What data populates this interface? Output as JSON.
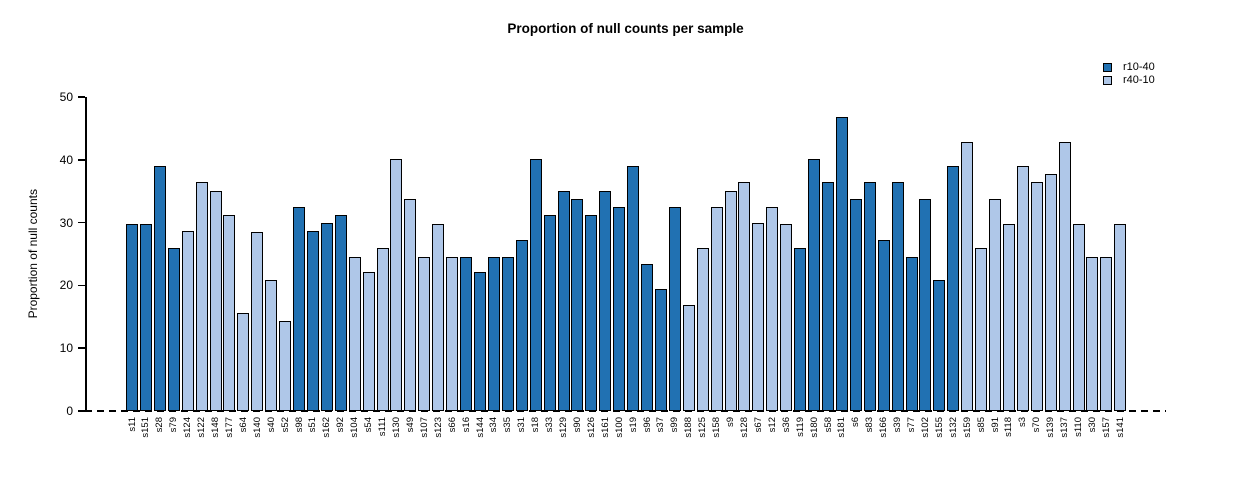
{
  "chart_data": {
    "type": "bar",
    "title": "Proportion of null counts per sample",
    "ylabel": "Proportion of null counts",
    "xlabel": "",
    "ylim": [
      0,
      50
    ],
    "yticks": [
      0,
      10,
      20,
      30,
      40,
      50
    ],
    "grid": false,
    "zero_line_style": "dashed",
    "legend": {
      "position": "top-right",
      "entries": [
        {
          "label": "r10-40",
          "color": "#2171B2"
        },
        {
          "label": "r40-10",
          "color": "#AFC7E8"
        }
      ]
    },
    "bar_border_color": "#000000",
    "categories": [
      "s11",
      "s151",
      "s28",
      "s79",
      "s124",
      "s122",
      "s148",
      "s177",
      "s64",
      "s140",
      "s40",
      "s52",
      "s98",
      "s51",
      "s162",
      "s92",
      "s104",
      "s54",
      "s111",
      "s130",
      "s49",
      "s107",
      "s123",
      "s66",
      "s16",
      "s144",
      "s34",
      "s35",
      "s31",
      "s18",
      "s33",
      "s129",
      "s90",
      "s126",
      "s161",
      "s100",
      "s19",
      "s96",
      "s37",
      "s99",
      "s188",
      "s125",
      "s158",
      "s9",
      "s128",
      "s67",
      "s12",
      "s36",
      "s119",
      "s180",
      "s58",
      "s181",
      "s6",
      "s83",
      "s166",
      "s39",
      "s77",
      "s102",
      "s155",
      "s132",
      "s159",
      "s85",
      "s91",
      "s118",
      "s3",
      "s70",
      "s139",
      "s137",
      "s110",
      "s30",
      "s157",
      "s141"
    ],
    "values": [
      29.8,
      29.8,
      39.0,
      26.0,
      28.6,
      36.4,
      35.0,
      31.2,
      15.6,
      28.5,
      20.8,
      14.3,
      32.5,
      28.6,
      29.9,
      31.2,
      24.5,
      22.1,
      26.0,
      40.2,
      33.8,
      24.5,
      29.8,
      24.5,
      24.5,
      22.1,
      24.5,
      24.5,
      27.3,
      40.2,
      31.2,
      35.0,
      33.7,
      31.2,
      35.0,
      32.5,
      39.0,
      23.4,
      19.5,
      32.5,
      16.9,
      26.0,
      32.5,
      35.0,
      36.4,
      29.9,
      32.5,
      29.8,
      26.0,
      40.2,
      36.4,
      46.8,
      33.7,
      36.4,
      27.3,
      36.4,
      24.6,
      33.7,
      20.8,
      39.0,
      42.8,
      26.0,
      33.7,
      29.8,
      39.0,
      36.4,
      37.7,
      42.8,
      29.8,
      24.6,
      24.6,
      29.8
    ],
    "bar_groups": [
      "r10-40",
      "r10-40",
      "r10-40",
      "r10-40",
      "r40-10",
      "r40-10",
      "r40-10",
      "r40-10",
      "r40-10",
      "r40-10",
      "r40-10",
      "r40-10",
      "r10-40",
      "r10-40",
      "r10-40",
      "r10-40",
      "r40-10",
      "r40-10",
      "r40-10",
      "r40-10",
      "r40-10",
      "r40-10",
      "r40-10",
      "r40-10",
      "r10-40",
      "r10-40",
      "r10-40",
      "r10-40",
      "r10-40",
      "r10-40",
      "r10-40",
      "r10-40",
      "r10-40",
      "r10-40",
      "r10-40",
      "r10-40",
      "r10-40",
      "r10-40",
      "r10-40",
      "r10-40",
      "r40-10",
      "r40-10",
      "r40-10",
      "r40-10",
      "r40-10",
      "r40-10",
      "r40-10",
      "r40-10",
      "r10-40",
      "r10-40",
      "r10-40",
      "r10-40",
      "r10-40",
      "r10-40",
      "r10-40",
      "r10-40",
      "r10-40",
      "r10-40",
      "r10-40",
      "r10-40",
      "r40-10",
      "r40-10",
      "r40-10",
      "r40-10",
      "r40-10",
      "r40-10",
      "r40-10",
      "r40-10",
      "r40-10",
      "r40-10",
      "r40-10",
      "r40-10"
    ]
  }
}
